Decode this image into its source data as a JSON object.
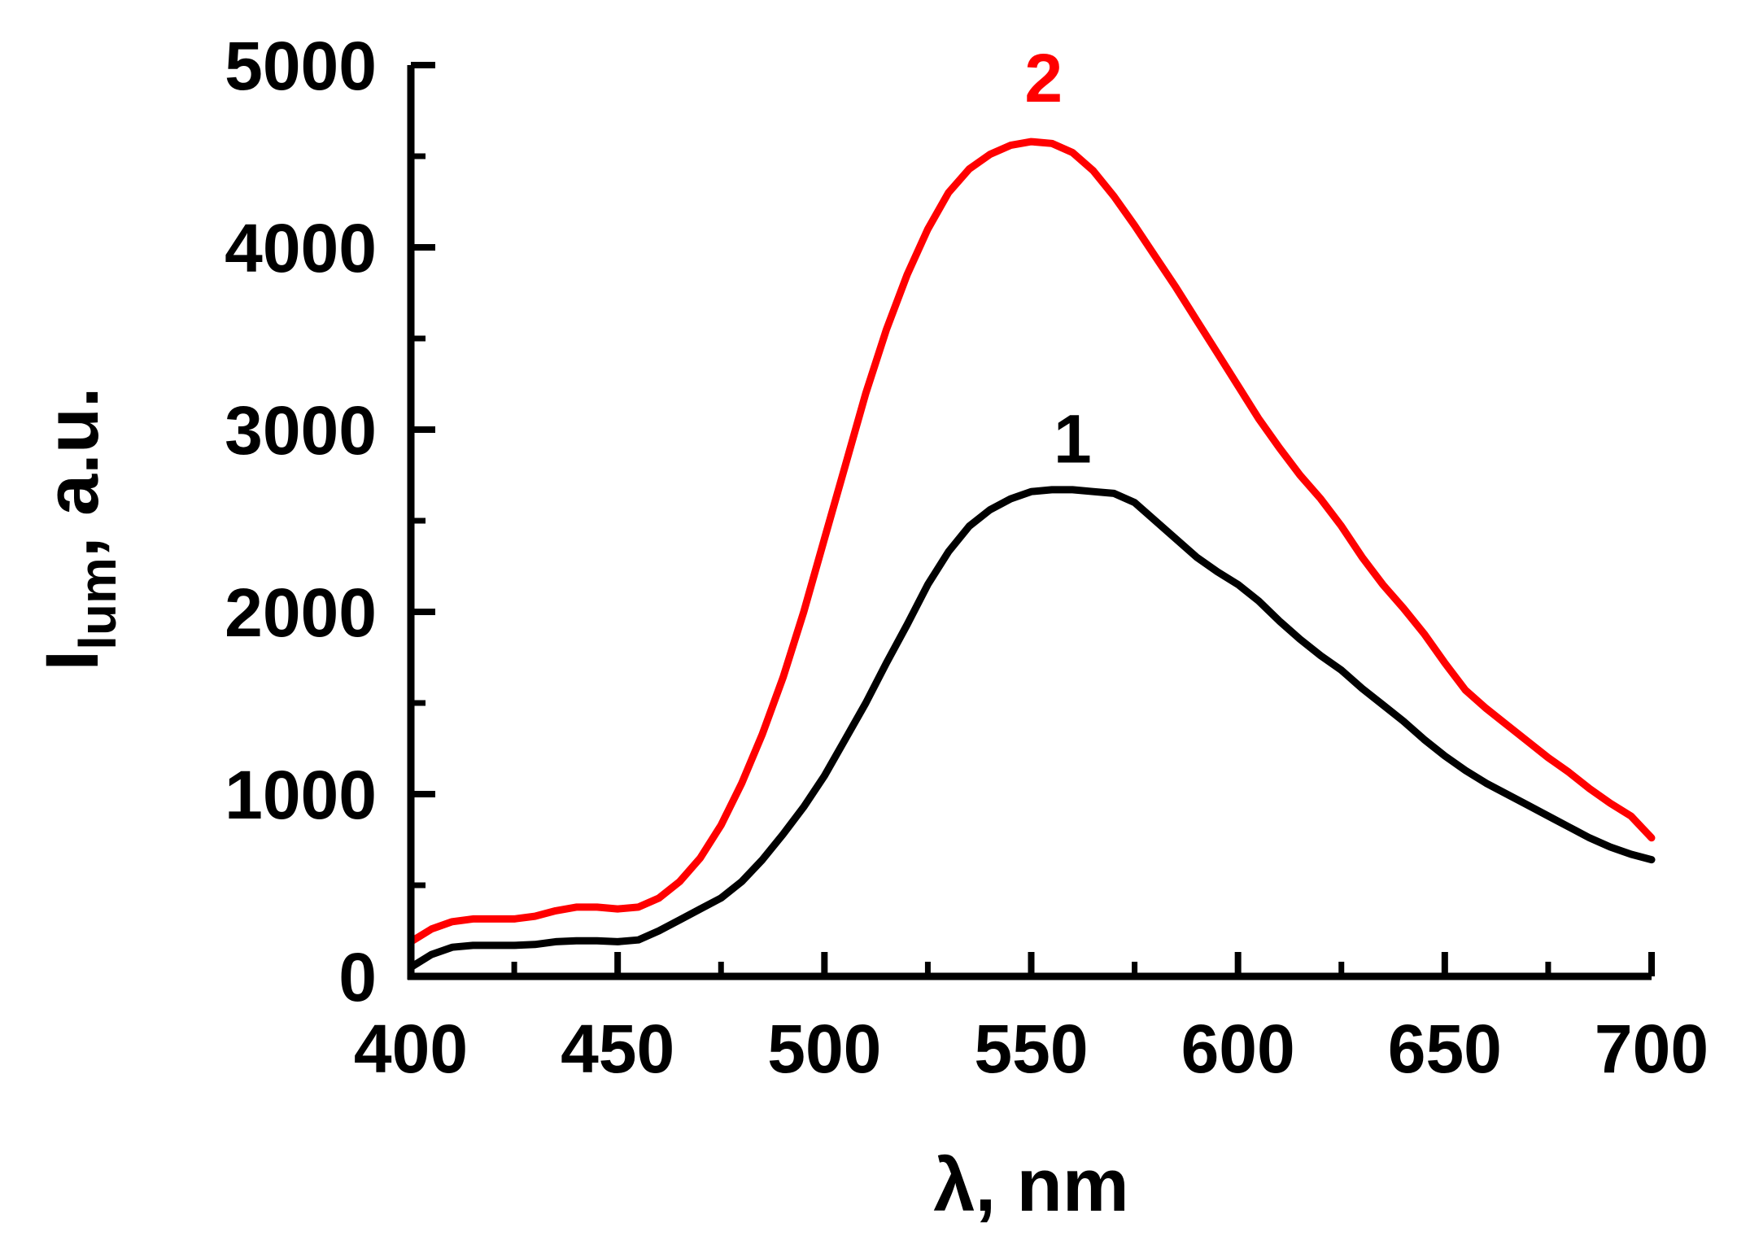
{
  "chart_data": {
    "type": "line",
    "xlabel": "λ, nm",
    "ylabel": {
      "main": "I",
      "sub": "lum",
      "rest": ", a.u."
    },
    "xlim": [
      400,
      700
    ],
    "ylim": [
      0,
      5000
    ],
    "x_ticks": [
      400,
      450,
      500,
      550,
      600,
      650,
      700
    ],
    "y_ticks": [
      0,
      1000,
      2000,
      3000,
      4000,
      5000
    ],
    "x_tick_labels": [
      "400",
      "450",
      "500",
      "550",
      "600",
      "650",
      "700"
    ],
    "y_tick_labels": [
      "0",
      "1000",
      "2000",
      "3000",
      "4000",
      "5000"
    ],
    "grid": false,
    "series": [
      {
        "name": "1",
        "color": "#000000",
        "label_at": [
          560,
          2820
        ],
        "points": [
          [
            400,
            50
          ],
          [
            405,
            120
          ],
          [
            410,
            160
          ],
          [
            415,
            170
          ],
          [
            420,
            170
          ],
          [
            425,
            170
          ],
          [
            430,
            175
          ],
          [
            435,
            190
          ],
          [
            440,
            195
          ],
          [
            445,
            195
          ],
          [
            450,
            190
          ],
          [
            455,
            200
          ],
          [
            460,
            250
          ],
          [
            465,
            310
          ],
          [
            470,
            370
          ],
          [
            475,
            430
          ],
          [
            480,
            520
          ],
          [
            485,
            640
          ],
          [
            490,
            780
          ],
          [
            495,
            930
          ],
          [
            500,
            1100
          ],
          [
            505,
            1300
          ],
          [
            510,
            1500
          ],
          [
            515,
            1720
          ],
          [
            520,
            1930
          ],
          [
            525,
            2150
          ],
          [
            530,
            2330
          ],
          [
            535,
            2470
          ],
          [
            540,
            2560
          ],
          [
            545,
            2620
          ],
          [
            550,
            2660
          ],
          [
            555,
            2670
          ],
          [
            560,
            2670
          ],
          [
            565,
            2660
          ],
          [
            570,
            2650
          ],
          [
            575,
            2600
          ],
          [
            580,
            2500
          ],
          [
            585,
            2400
          ],
          [
            590,
            2300
          ],
          [
            595,
            2220
          ],
          [
            600,
            2150
          ],
          [
            605,
            2060
          ],
          [
            610,
            1950
          ],
          [
            615,
            1850
          ],
          [
            620,
            1760
          ],
          [
            625,
            1680
          ],
          [
            630,
            1580
          ],
          [
            635,
            1490
          ],
          [
            640,
            1400
          ],
          [
            645,
            1300
          ],
          [
            650,
            1210
          ],
          [
            655,
            1130
          ],
          [
            660,
            1060
          ],
          [
            665,
            1000
          ],
          [
            670,
            940
          ],
          [
            675,
            880
          ],
          [
            680,
            820
          ],
          [
            685,
            760
          ],
          [
            690,
            710
          ],
          [
            695,
            670
          ],
          [
            700,
            640
          ]
        ]
      },
      {
        "name": "2",
        "color": "#ff0000",
        "label_at": [
          553,
          4800
        ],
        "points": [
          [
            400,
            190
          ],
          [
            405,
            260
          ],
          [
            410,
            300
          ],
          [
            415,
            315
          ],
          [
            420,
            315
          ],
          [
            425,
            315
          ],
          [
            430,
            330
          ],
          [
            435,
            360
          ],
          [
            440,
            380
          ],
          [
            445,
            380
          ],
          [
            450,
            370
          ],
          [
            455,
            380
          ],
          [
            460,
            430
          ],
          [
            465,
            520
          ],
          [
            470,
            650
          ],
          [
            475,
            830
          ],
          [
            480,
            1060
          ],
          [
            485,
            1330
          ],
          [
            490,
            1640
          ],
          [
            495,
            2000
          ],
          [
            500,
            2400
          ],
          [
            505,
            2800
          ],
          [
            510,
            3200
          ],
          [
            515,
            3550
          ],
          [
            520,
            3850
          ],
          [
            525,
            4100
          ],
          [
            530,
            4300
          ],
          [
            535,
            4430
          ],
          [
            540,
            4510
          ],
          [
            545,
            4560
          ],
          [
            550,
            4580
          ],
          [
            555,
            4570
          ],
          [
            560,
            4520
          ],
          [
            565,
            4420
          ],
          [
            570,
            4280
          ],
          [
            575,
            4120
          ],
          [
            580,
            3950
          ],
          [
            585,
            3780
          ],
          [
            590,
            3600
          ],
          [
            595,
            3420
          ],
          [
            600,
            3240
          ],
          [
            605,
            3060
          ],
          [
            610,
            2900
          ],
          [
            615,
            2750
          ],
          [
            620,
            2620
          ],
          [
            625,
            2470
          ],
          [
            630,
            2300
          ],
          [
            635,
            2150
          ],
          [
            640,
            2020
          ],
          [
            645,
            1880
          ],
          [
            650,
            1720
          ],
          [
            655,
            1570
          ],
          [
            660,
            1470
          ],
          [
            665,
            1380
          ],
          [
            670,
            1290
          ],
          [
            675,
            1200
          ],
          [
            680,
            1120
          ],
          [
            685,
            1030
          ],
          [
            690,
            950
          ],
          [
            695,
            880
          ],
          [
            700,
            760
          ]
        ]
      }
    ]
  }
}
